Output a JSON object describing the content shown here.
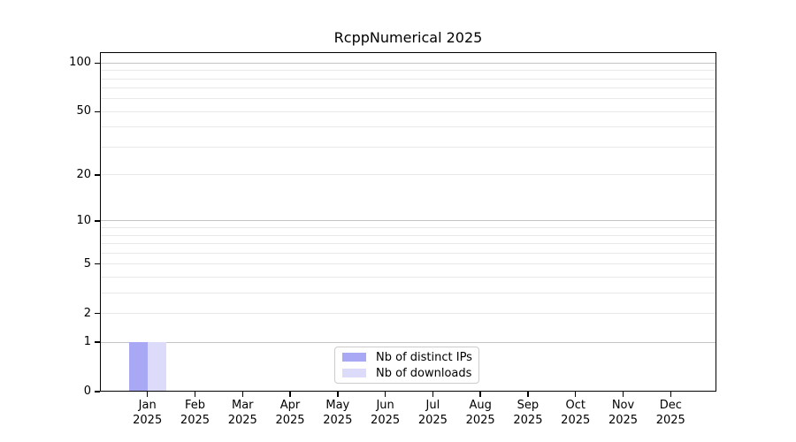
{
  "chart_data": {
    "type": "bar",
    "title": "RcppNumerical 2025",
    "categories": [
      "Jan 2025",
      "Feb 2025",
      "Mar 2025",
      "Apr 2025",
      "May 2025",
      "Jun 2025",
      "Jul 2025",
      "Aug 2025",
      "Sep 2025",
      "Oct 2025",
      "Nov 2025",
      "Dec 2025"
    ],
    "series": [
      {
        "name": "Nb of distinct IPs",
        "color": "#a8a8f5",
        "values": [
          1,
          0,
          0,
          0,
          0,
          0,
          0,
          0,
          0,
          0,
          0,
          0
        ]
      },
      {
        "name": "Nb of downloads",
        "color": "#dcdcfa",
        "values": [
          1,
          0,
          0,
          0,
          0,
          0,
          0,
          0,
          0,
          0,
          0,
          0
        ]
      }
    ],
    "xlabel": "",
    "ylabel": "",
    "y_scale": "log1p",
    "y_tick_values": [
      0,
      1,
      2,
      5,
      10,
      20,
      50,
      100
    ],
    "ylim": [
      0,
      117
    ],
    "grid": true,
    "legend_position": "lower center"
  },
  "axes": {
    "y": {
      "ticks": [
        {
          "label": "100",
          "value": 100
        },
        {
          "label": "50",
          "value": 50
        },
        {
          "label": "20",
          "value": 20
        },
        {
          "label": "10",
          "value": 10
        },
        {
          "label": "5",
          "value": 5
        },
        {
          "label": "2",
          "value": 2
        },
        {
          "label": "1",
          "value": 1
        },
        {
          "label": "0",
          "value": 0
        }
      ],
      "minor": [
        3,
        4,
        6,
        7,
        8,
        9,
        30,
        40,
        60,
        70,
        80,
        90
      ]
    },
    "x": {
      "ticks": [
        {
          "month": "Jan",
          "year": "2025"
        },
        {
          "month": "Feb",
          "year": "2025"
        },
        {
          "month": "Mar",
          "year": "2025"
        },
        {
          "month": "Apr",
          "year": "2025"
        },
        {
          "month": "May",
          "year": "2025"
        },
        {
          "month": "Jun",
          "year": "2025"
        },
        {
          "month": "Jul",
          "year": "2025"
        },
        {
          "month": "Aug",
          "year": "2025"
        },
        {
          "month": "Sep",
          "year": "2025"
        },
        {
          "month": "Oct",
          "year": "2025"
        },
        {
          "month": "Nov",
          "year": "2025"
        },
        {
          "month": "Dec",
          "year": "2025"
        }
      ]
    }
  },
  "legend": {
    "items": [
      {
        "label": "Nb of distinct IPs",
        "color": "#a8a8f5"
      },
      {
        "label": "Nb of downloads",
        "color": "#dcdcfa"
      }
    ]
  },
  "colors": {
    "grid_decade": "#c4c4c4",
    "grid_light": "#e9e9e9",
    "axis": "#000000",
    "background": "#ffffff"
  }
}
